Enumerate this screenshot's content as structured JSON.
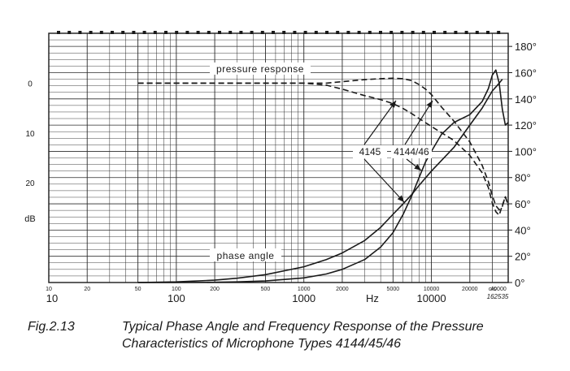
{
  "chart_data": {
    "type": "line",
    "x_scale": "log",
    "xlim": [
      10,
      40000
    ],
    "xlabel": "Hz",
    "grid": true,
    "x_ticks_small": [
      "10",
      "20",
      "50",
      "100",
      "200",
      "500",
      "1000",
      "2000",
      "5000",
      "10000",
      "20000",
      "c/s",
      "40000"
    ],
    "x_ticks_major": [
      "10",
      "100",
      "1000",
      "10000"
    ],
    "left_axis": {
      "label": "dB",
      "ticks": [
        "0",
        "10",
        "20"
      ],
      "lim": [
        -10,
        40
      ]
    },
    "right_axis": {
      "ticks": [
        "0°",
        "20°",
        "40°",
        "60°",
        "80°",
        "100°",
        "120°",
        "140°",
        "160°",
        "180°"
      ],
      "lim": [
        0,
        190
      ]
    },
    "annotations": {
      "pressure_response": "pressure response",
      "phase_angle": "phase angle",
      "type_4145": "4145",
      "type_4144_46": "4144/46",
      "figure_code": "162535"
    },
    "series": [
      {
        "group": "pressure response",
        "style": "dashed",
        "x": [
          50,
          100,
          300,
          1000,
          1500,
          2000,
          3000,
          4000,
          5000,
          6000,
          7000,
          8000,
          10000,
          15000,
          20000,
          25000,
          28000,
          30000,
          32000,
          34000,
          36000,
          38000,
          40000
        ],
        "y": [
          0,
          0,
          0,
          0,
          0.4,
          1.2,
          2.5,
          3.3,
          4.1,
          5.1,
          6.1,
          7.1,
          8.7,
          11.5,
          14.5,
          18,
          21,
          24,
          25.8,
          26.5,
          24.5,
          22.8,
          24.5
        ]
      },
      {
        "group": "pressure response",
        "style": "dashed",
        "x": [
          50,
          100,
          300,
          1000,
          1500,
          2000,
          3000,
          4000,
          5000,
          6000,
          7000,
          8000,
          9000,
          10000,
          12000,
          15000,
          20000,
          25000,
          28000,
          30000,
          32000,
          34000,
          36000,
          38000,
          40000
        ],
        "y": [
          0,
          0,
          0,
          0,
          0,
          -0.3,
          -0.7,
          -0.9,
          -1.0,
          -0.9,
          -0.5,
          0.3,
          1.2,
          2.3,
          4.8,
          7.6,
          11.8,
          16.5,
          19.8,
          22.5,
          24.6,
          25.4,
          24.7,
          22.8,
          24.5
        ]
      },
      {
        "group": "phase angle",
        "style": "solid",
        "x": [
          50,
          100,
          200,
          300,
          500,
          1000,
          1500,
          2000,
          3000,
          4000,
          5000,
          6000,
          7000,
          8000,
          10000,
          15000,
          20000,
          25000,
          30000,
          32000,
          34000,
          36000
        ],
        "y": [
          0,
          0.5,
          1.8,
          3.3,
          6,
          12,
          17.5,
          22.5,
          32,
          42,
          52,
          60,
          67,
          74,
          85,
          103,
          120,
          133,
          146,
          149,
          152,
          155
        ]
      },
      {
        "group": "phase angle",
        "style": "solid",
        "x": [
          50,
          100,
          200,
          300,
          500,
          1000,
          1500,
          2000,
          3000,
          4000,
          5000,
          6000,
          7000,
          8000,
          9000,
          10000,
          12000,
          15000,
          20000,
          25000,
          28000,
          30000,
          32000,
          34000,
          36000,
          38000,
          40000
        ],
        "y": [
          0,
          0,
          0.2,
          0.5,
          1.2,
          3.5,
          6.5,
          10,
          17.5,
          27,
          38,
          52,
          66,
          80,
          92,
          100,
          113,
          122,
          128,
          138,
          148,
          158,
          162,
          152,
          132,
          120,
          122
        ]
      }
    ]
  },
  "caption": {
    "number": "Fig.2.13",
    "line1": "Typical Phase Angle and Frequency Response of the Pressure",
    "line2": "Characteristics of Microphone Types 4144/45/46"
  },
  "colors": {
    "ink": "#1a1a1a",
    "grid": "#2b2b2b",
    "background": "#ffffff"
  }
}
